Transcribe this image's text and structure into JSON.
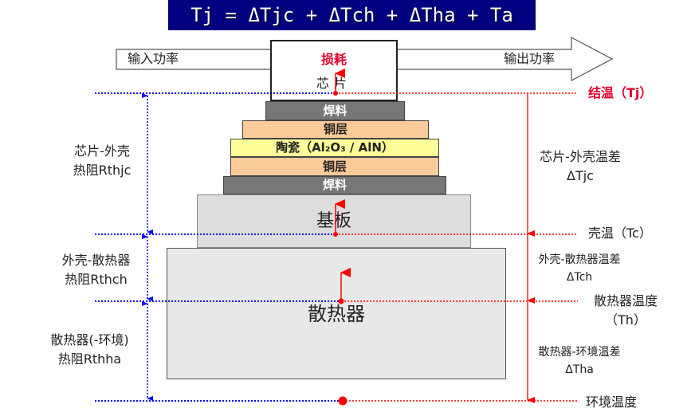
{
  "formula": "Tj = ΔTjc + ΔTch + ΔTha + Ta",
  "power_flow": {
    "input": "输入功率",
    "loss": "损耗",
    "output": "输出功率"
  },
  "stack": {
    "chip": "芯片",
    "solder_top": "焊料",
    "copper_top": "铜层",
    "ceramic": "陶瓷（Al₂O₃ / AlN）",
    "copper_bottom": "铜层",
    "solder_bottom": "焊料",
    "baseplate": "基板",
    "heatsink": "散热器"
  },
  "left_labels": [
    {
      "line1": "芯片-外壳",
      "line2": "热阻Rthjc"
    },
    {
      "line1": "外壳-散热器",
      "line2": "热阻Rthch"
    },
    {
      "line1": "散热器(-环境)",
      "line2": "热阻Rthha"
    }
  ],
  "right_labels": {
    "tj": "结温（Tj）",
    "djc": {
      "line1": "芯片-外壳温差",
      "line2": "ΔTjc"
    },
    "tc": "壳温（Tc）",
    "dch": {
      "line1": "外壳-散热器温差",
      "line2": "ΔTch"
    },
    "th": {
      "line1": "散热器温度",
      "line2": "（Th）"
    },
    "dha": {
      "line1": "散热器-环境温差",
      "line2": "ΔTha"
    },
    "ta": "环境温度"
  },
  "colors": {
    "title_bg": "#000080",
    "solder": "#777777",
    "copper": "#fccb9a",
    "ceramic": "#ffff99",
    "baseplate": "#dddddd",
    "heatsink": "#e8e8e8",
    "red": "#ff0000",
    "blue": "#0000ff",
    "tj_label": "#e0002a"
  }
}
